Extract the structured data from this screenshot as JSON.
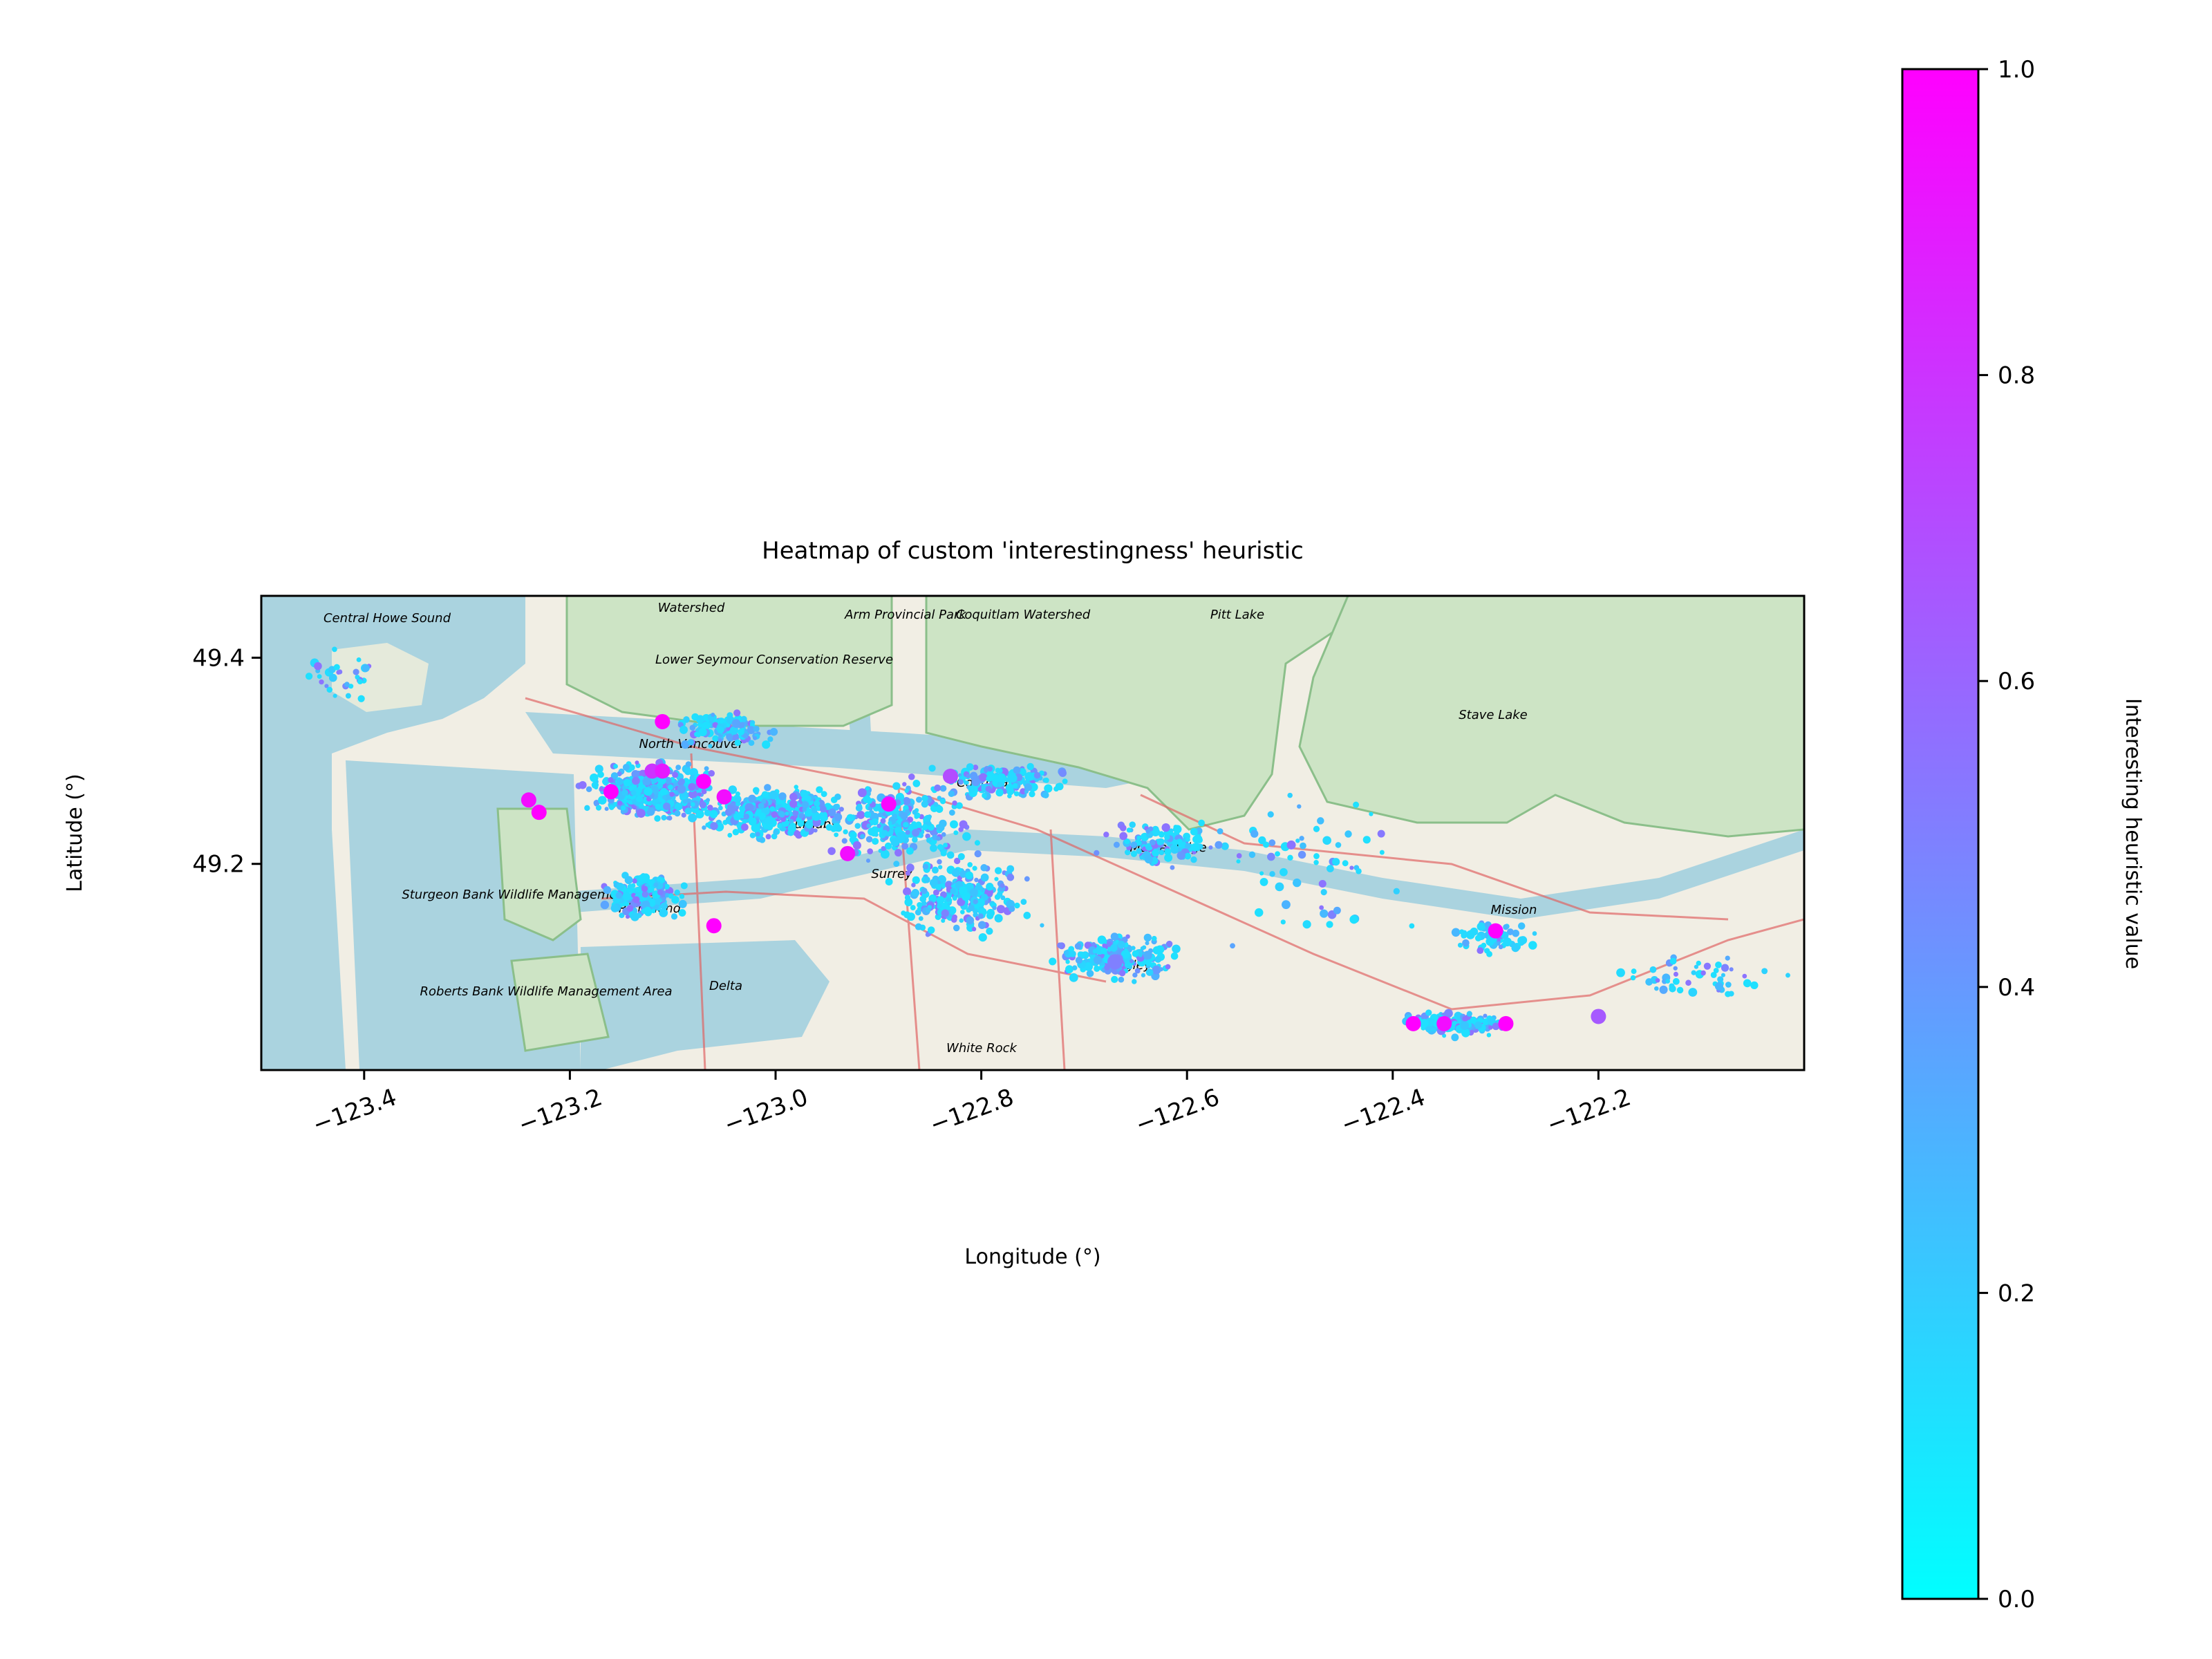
{
  "chart_data": {
    "type": "scatter",
    "title": "Heatmap of custom 'interestingness' heuristic",
    "xlabel": "Longitude (°)",
    "ylabel": "Latitude (°)",
    "xlim": [
      -123.5,
      -122.0
    ],
    "ylim": [
      49.0,
      49.46
    ],
    "xticks": [
      -123.4,
      -123.2,
      -123.0,
      -122.8,
      -122.6,
      -122.4,
      -122.2
    ],
    "xtick_labels": [
      "−123.4",
      "−123.2",
      "−123.0",
      "−122.8",
      "−122.6",
      "−122.4",
      "−122.2"
    ],
    "yticks": [
      49.2,
      49.4
    ],
    "ytick_labels": [
      "49.2",
      "49.4"
    ],
    "background": "street map of Metro Vancouver",
    "map_labels": [
      "Central Howe Sound",
      "Watershed",
      "Arm Provincial Park",
      "Coquitlam Watershed",
      "Pitt Lake",
      "Lower Seymour Conservation Reserve",
      "North Vancouver",
      "Burnaby",
      "Coquitlam",
      "Maple Ridge",
      "Stave Lake",
      "Surrey",
      "Richmond",
      "Sturgeon Bank Wildlife Management Area",
      "Roberts Bank Wildlife Management Area",
      "Delta",
      "Langley",
      "Mission",
      "White Rock"
    ],
    "colorbar": {
      "label": "Interesting heuristic value",
      "range": [
        0.0,
        1.0
      ],
      "ticks": [
        0.0,
        0.2,
        0.4,
        0.6,
        0.8,
        1.0
      ],
      "tick_labels": [
        "0.0",
        "0.2",
        "0.4",
        "0.6",
        "0.8",
        "1.0"
      ],
      "cmap": "cool",
      "cmap_colors": [
        "#00ffff",
        "#ff00ff"
      ]
    },
    "highlight_points": [
      {
        "lon": -123.24,
        "lat": 49.262,
        "value": 0.95
      },
      {
        "lon": -123.23,
        "lat": 49.25,
        "value": 1.0
      },
      {
        "lon": -123.16,
        "lat": 49.27,
        "value": 1.0
      },
      {
        "lon": -123.11,
        "lat": 49.338,
        "value": 1.0
      },
      {
        "lon": -123.12,
        "lat": 49.29,
        "value": 0.8
      },
      {
        "lon": -123.11,
        "lat": 49.29,
        "value": 0.9
      },
      {
        "lon": -123.07,
        "lat": 49.28,
        "value": 1.0
      },
      {
        "lon": -123.05,
        "lat": 49.265,
        "value": 0.95
      },
      {
        "lon": -122.89,
        "lat": 49.258,
        "value": 0.98
      },
      {
        "lon": -122.93,
        "lat": 49.21,
        "value": 0.95
      },
      {
        "lon": -122.83,
        "lat": 49.285,
        "value": 0.7
      },
      {
        "lon": -123.06,
        "lat": 49.14,
        "value": 1.0
      },
      {
        "lon": -122.67,
        "lat": 49.105,
        "value": 0.5
      },
      {
        "lon": -122.3,
        "lat": 49.135,
        "value": 1.0
      },
      {
        "lon": -122.38,
        "lat": 49.045,
        "value": 1.0
      },
      {
        "lon": -122.35,
        "lat": 49.045,
        "value": 0.95
      },
      {
        "lon": -122.29,
        "lat": 49.045,
        "value": 1.0
      },
      {
        "lon": -122.2,
        "lat": 49.052,
        "value": 0.65
      }
    ]
  }
}
